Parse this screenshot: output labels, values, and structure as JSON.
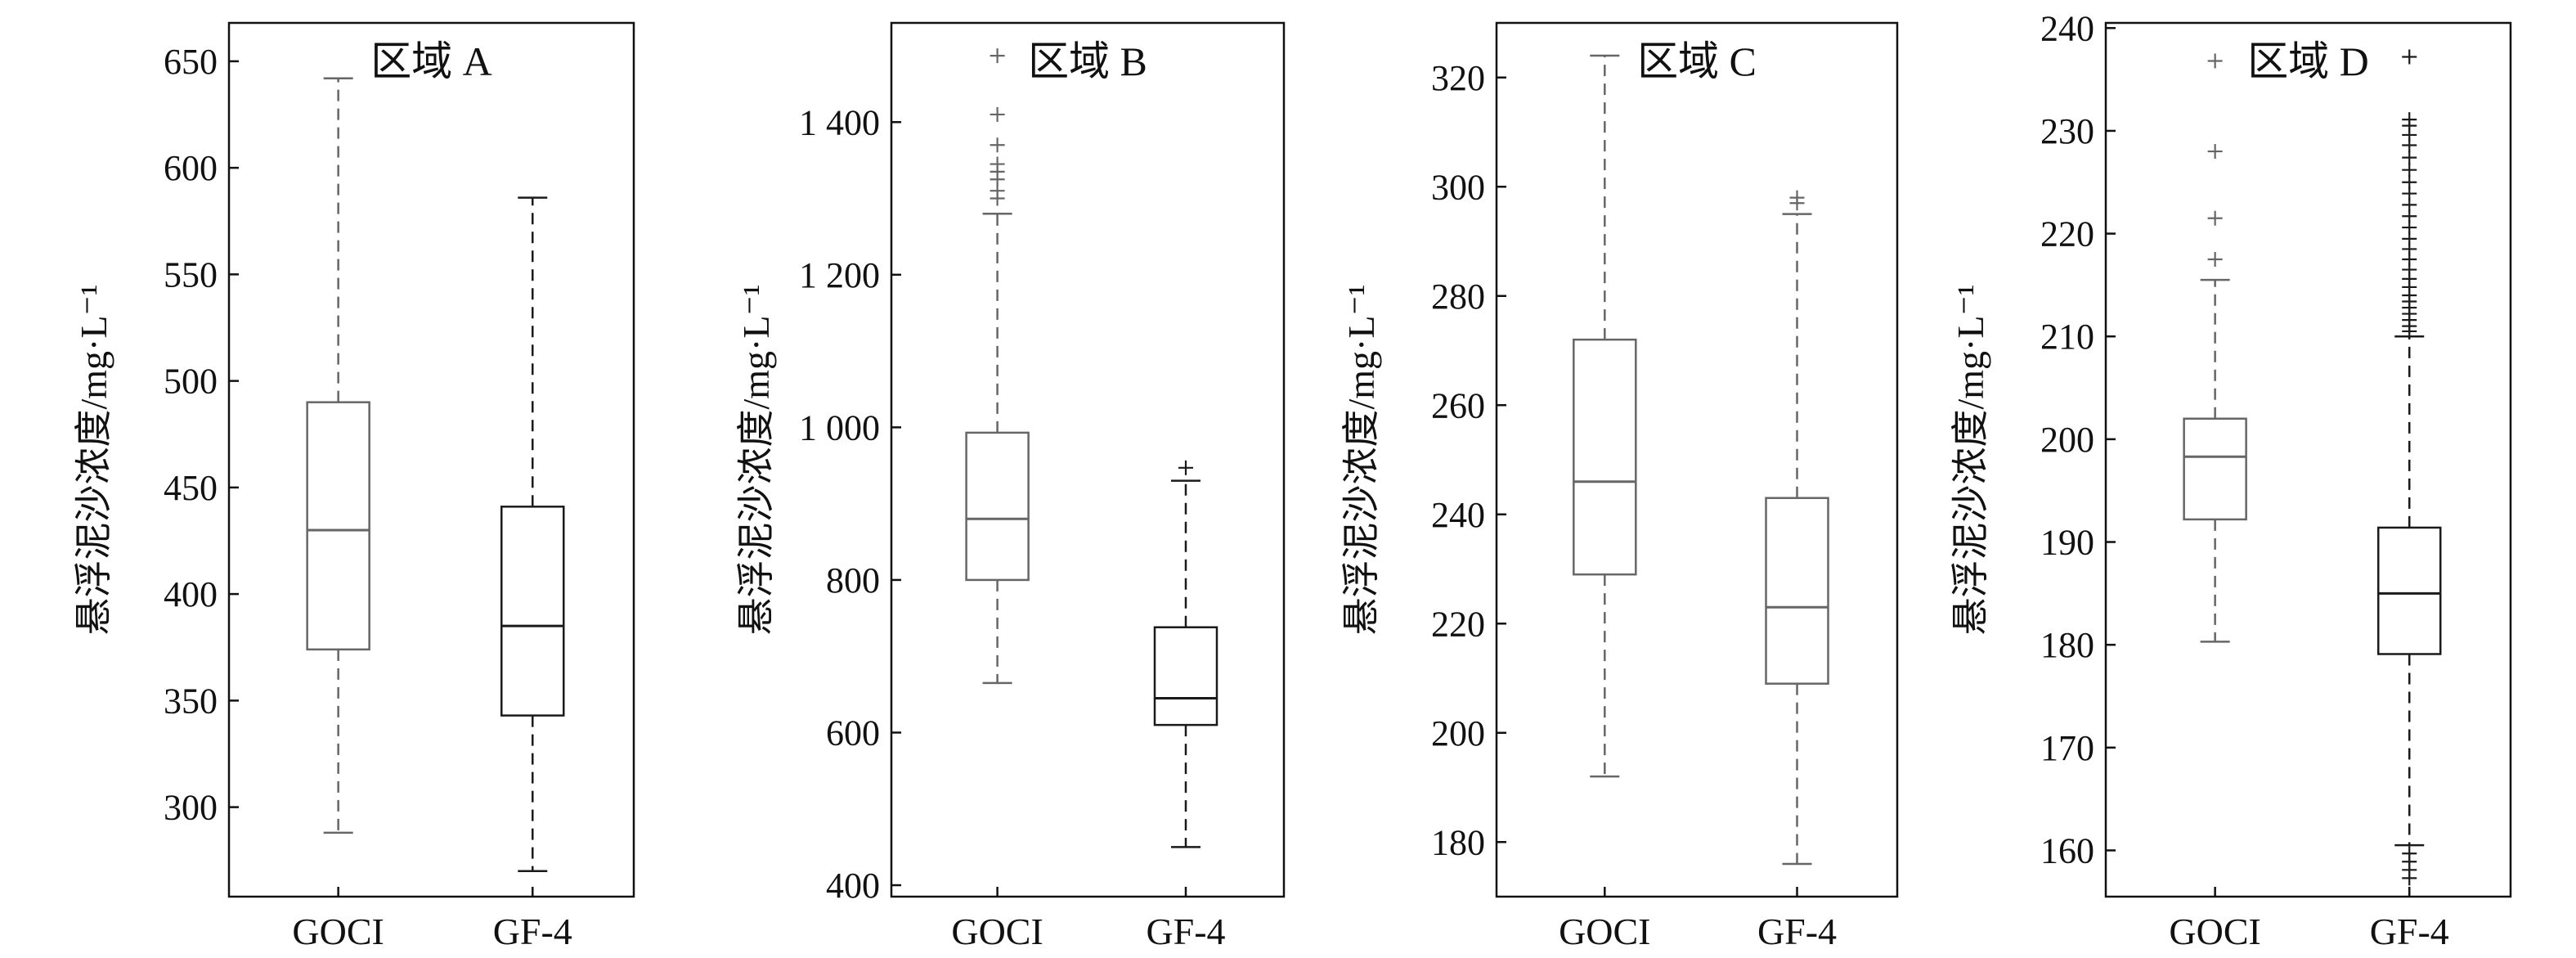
{
  "chart_data": [
    {
      "type": "box",
      "title": "区域 A",
      "ylabel": "悬浮泥沙浓度/mg·L⁻¹",
      "categories": [
        "GOCI",
        "GF-4"
      ],
      "ylim": [
        258,
        668
      ],
      "yticks": [
        300,
        350,
        400,
        450,
        500,
        550,
        600,
        650
      ],
      "ytick_labels": [
        "300",
        "350",
        "400",
        "450",
        "500",
        "550",
        "600",
        "650"
      ],
      "boxes": [
        {
          "category": "GOCI",
          "whisker_low": 288,
          "q1": 374,
          "median": 430,
          "q3": 490,
          "whisker_high": 642,
          "outliers": [],
          "style": "gray"
        },
        {
          "category": "GF-4",
          "whisker_low": 270,
          "q1": 343,
          "median": 385,
          "q3": 441,
          "whisker_high": 586,
          "outliers": [],
          "style": "black"
        }
      ]
    },
    {
      "type": "box",
      "title": "区域 B",
      "ylabel": "悬浮泥沙浓度/mg·L⁻¹",
      "categories": [
        "GOCI",
        "GF-4"
      ],
      "ylim": [
        385,
        1530
      ],
      "yticks": [
        400,
        600,
        800,
        1000,
        1200,
        1400
      ],
      "ytick_labels": [
        "400",
        "600",
        "800",
        "1 000",
        "1 200",
        "1 400"
      ],
      "boxes": [
        {
          "category": "GOCI",
          "whisker_low": 665,
          "q1": 800,
          "median": 880,
          "q3": 993,
          "whisker_high": 1280,
          "outliers": [
            1300,
            1310,
            1325,
            1335,
            1345,
            1370,
            1410,
            1487
          ],
          "style": "gray"
        },
        {
          "category": "GF-4",
          "whisker_low": 450,
          "q1": 610,
          "median": 645,
          "q3": 738,
          "whisker_high": 930,
          "outliers": [
            947
          ],
          "style": "black"
        }
      ]
    },
    {
      "type": "box",
      "title": "区域 C",
      "ylabel": "悬浮泥沙浓度/mg·L⁻¹",
      "categories": [
        "GOCI",
        "GF-4"
      ],
      "ylim": [
        170,
        330
      ],
      "yticks": [
        180,
        200,
        220,
        240,
        260,
        280,
        300,
        320
      ],
      "ytick_labels": [
        "180",
        "200",
        "220",
        "240",
        "260",
        "280",
        "300",
        "320"
      ],
      "boxes": [
        {
          "category": "GOCI",
          "whisker_low": 192,
          "q1": 229,
          "median": 246,
          "q3": 272,
          "whisker_high": 324,
          "outliers": [],
          "style": "gray"
        },
        {
          "category": "GF-4",
          "whisker_low": 176,
          "q1": 209,
          "median": 223,
          "q3": 243,
          "whisker_high": 295,
          "outliers": [
            297,
            298
          ],
          "style": "gray"
        }
      ]
    },
    {
      "type": "box",
      "title": "区域 D",
      "ylabel": "悬浮泥沙浓度/mg·L⁻¹",
      "categories": [
        "GOCI",
        "GF-4"
      ],
      "ylim": [
        155.5,
        240.5
      ],
      "yticks": [
        160,
        170,
        180,
        190,
        200,
        210,
        220,
        230,
        240
      ],
      "ytick_labels": [
        "160",
        "170",
        "180",
        "190",
        "200",
        "210",
        "220",
        "230",
        "240"
      ],
      "boxes": [
        {
          "category": "GOCI",
          "whisker_low": 180.3,
          "q1": 192.2,
          "median": 198.3,
          "q3": 202,
          "whisker_high": 215.5,
          "outliers": [
            217.5,
            221.5,
            228,
            236.8
          ],
          "style": "gray"
        },
        {
          "category": "GF-4",
          "whisker_low": 160.5,
          "q1": 179.1,
          "median": 185,
          "q3": 191.4,
          "whisker_high": 210,
          "outliers": [
            157.3,
            158.1,
            158.9,
            159.7,
            210.5,
            211,
            211.6,
            212.2,
            212.8,
            213.4,
            214,
            214.8,
            215.6,
            216.5,
            217.5,
            218.5,
            219.5,
            220.6,
            221.7,
            222.8,
            223.9,
            225,
            226.2,
            227.4,
            228.6,
            229.6,
            230.5,
            231.1,
            237.2
          ],
          "style": "black"
        }
      ]
    }
  ]
}
